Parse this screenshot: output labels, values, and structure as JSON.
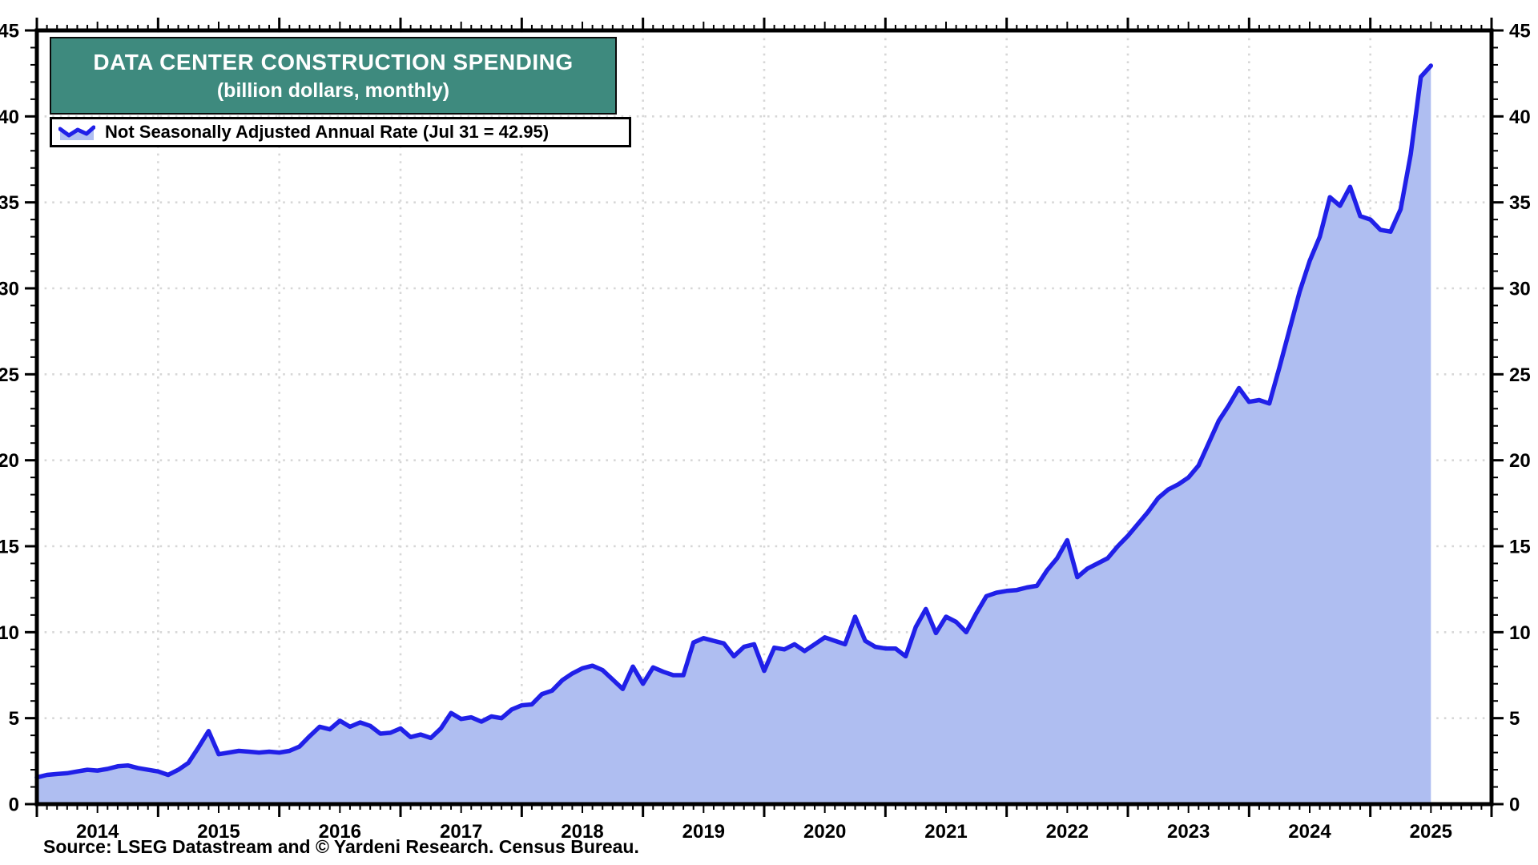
{
  "title": {
    "line1": "DATA CENTER CONSTRUCTION SPENDING",
    "line2": "(billion dollars, monthly)"
  },
  "legend": {
    "label": "Not Seasonally Adjusted Annual Rate (Jul 31 = 42.95)",
    "swatch": "area-line-swatch-icon"
  },
  "source": "Source: LSEG Datastream and © Yardeni Research. Census Bureau.",
  "colors": {
    "title_box_bg": "#3E8A7E",
    "line": "#2020E8",
    "area_fill": "#AFBEF1",
    "gridline": "#D7D7D7",
    "axis": "#000000",
    "text": "#000000",
    "title_text": "#FFFFFF"
  },
  "chart_data": {
    "type": "area",
    "title": "DATA CENTER CONSTRUCTION SPENDING",
    "subtitle": "(billion dollars, monthly)",
    "xlabel": "",
    "ylabel": "billion dollars",
    "x_start": "2014-01",
    "x_end_plotted": "2025-07",
    "frequency": "monthly",
    "x_axis_span_months": 144,
    "y_min": 0,
    "y_max": 45,
    "y_tick_step": 5,
    "y_ticks": [
      0,
      5,
      10,
      15,
      20,
      25,
      30,
      35,
      40,
      45
    ],
    "x_tick_labels": [
      "2014",
      "2015",
      "2016",
      "2017",
      "2018",
      "2019",
      "2020",
      "2021",
      "2022",
      "2023",
      "2024",
      "2025"
    ],
    "grid": "dotted, horizontal every 5, vertical every January",
    "legend_position": "top-left",
    "last_point": {
      "date": "Jul 31",
      "value": 42.95
    },
    "series": [
      {
        "name": "Not Seasonally Adjusted Annual Rate",
        "values": [
          1.55,
          1.7,
          1.75,
          1.8,
          1.9,
          2.0,
          1.95,
          2.05,
          2.2,
          2.25,
          2.1,
          2.0,
          1.9,
          1.7,
          2.0,
          2.4,
          3.3,
          4.25,
          2.9,
          3.0,
          3.1,
          3.05,
          3.0,
          3.05,
          3.0,
          3.1,
          3.35,
          3.95,
          4.5,
          4.35,
          4.85,
          4.5,
          4.75,
          4.55,
          4.1,
          4.15,
          4.4,
          3.9,
          4.05,
          3.85,
          4.4,
          5.3,
          4.95,
          5.05,
          4.8,
          5.1,
          5.0,
          5.5,
          5.75,
          5.8,
          6.4,
          6.6,
          7.2,
          7.6,
          7.9,
          8.05,
          7.8,
          7.25,
          6.7,
          8.0,
          7.0,
          7.95,
          7.7,
          7.5,
          7.5,
          9.4,
          9.65,
          9.5,
          9.35,
          8.6,
          9.15,
          9.3,
          7.75,
          9.1,
          9.0,
          9.3,
          8.9,
          9.3,
          9.7,
          9.5,
          9.3,
          10.9,
          9.5,
          9.15,
          9.05,
          9.05,
          8.6,
          10.3,
          11.35,
          9.95,
          10.9,
          10.6,
          10.0,
          11.1,
          12.1,
          12.3,
          12.4,
          12.45,
          12.6,
          12.7,
          13.6,
          14.3,
          15.35,
          13.2,
          13.7,
          14.0,
          14.3,
          15.0,
          15.6,
          16.3,
          17.0,
          17.8,
          18.3,
          18.6,
          19.0,
          19.7,
          21.0,
          22.3,
          23.2,
          24.2,
          23.4,
          23.5,
          23.3,
          25.4,
          27.6,
          29.8,
          31.6,
          33.0,
          35.3,
          34.8,
          35.9,
          34.2,
          34.0,
          33.4,
          33.3,
          34.6,
          37.8,
          42.3,
          42.95
        ]
      }
    ]
  }
}
